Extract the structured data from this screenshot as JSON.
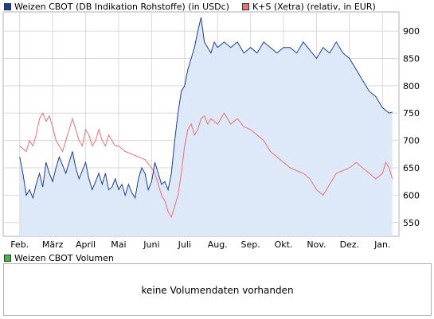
{
  "legend_top": [
    {
      "label": "Weizen CBOT (DB Indikation Rohstoffe) (in USDc)",
      "color": "#1f3f8a"
    },
    {
      "label": "K+S (Xetra) (relativ, in EUR)",
      "color": "#f07070"
    }
  ],
  "legend_volume": {
    "label": "Weizen CBOT Volumen",
    "color": "#4caf50"
  },
  "volume_message": "keine Volumendaten vorhanden",
  "chart_data": {
    "type": "line",
    "x": [
      "Feb.",
      "März",
      "April",
      "Mai",
      "Juni",
      "Juli",
      "Aug.",
      "Sep.",
      "Okt.",
      "Nov.",
      "Dez.",
      "Jan."
    ],
    "ylim": [
      525,
      935
    ],
    "yticks": [
      550,
      600,
      650,
      700,
      750,
      800,
      850,
      900
    ],
    "grid": true,
    "series": [
      {
        "name": "Weizen CBOT (DB Indikation Rohstoffe) (in USDc)",
        "color": "#1f3f8a",
        "fill": "#dde8f8",
        "x": [
          0,
          0.1,
          0.2,
          0.3,
          0.4,
          0.5,
          0.6,
          0.7,
          0.8,
          0.9,
          1.0,
          1.1,
          1.2,
          1.3,
          1.4,
          1.5,
          1.6,
          1.7,
          1.8,
          1.9,
          2.0,
          2.1,
          2.2,
          2.3,
          2.4,
          2.5,
          2.6,
          2.7,
          2.8,
          2.9,
          3.0,
          3.1,
          3.2,
          3.3,
          3.4,
          3.5,
          3.6,
          3.7,
          3.8,
          3.9,
          4.0,
          4.1,
          4.2,
          4.3,
          4.4,
          4.5,
          4.6,
          4.7,
          4.8,
          4.9,
          5.0,
          5.1,
          5.2,
          5.3,
          5.4,
          5.5,
          5.6,
          5.7,
          5.8,
          5.9,
          6.0,
          6.2,
          6.4,
          6.6,
          6.8,
          7.0,
          7.2,
          7.4,
          7.6,
          7.8,
          8.0,
          8.2,
          8.4,
          8.6,
          8.8,
          9.0,
          9.2,
          9.4,
          9.6,
          9.8,
          10.0,
          10.2,
          10.4,
          10.6,
          10.8,
          11.0,
          11.1,
          11.2,
          11.3
        ],
        "values": [
          670,
          640,
          600,
          610,
          595,
          620,
          640,
          615,
          660,
          640,
          625,
          650,
          670,
          655,
          640,
          660,
          680,
          650,
          630,
          645,
          660,
          630,
          610,
          625,
          640,
          620,
          640,
          610,
          615,
          630,
          610,
          620,
          600,
          620,
          605,
          595,
          630,
          650,
          640,
          610,
          625,
          660,
          640,
          620,
          625,
          610,
          640,
          700,
          750,
          790,
          800,
          830,
          850,
          870,
          900,
          925,
          880,
          870,
          860,
          880,
          870,
          880,
          870,
          880,
          860,
          870,
          860,
          880,
          870,
          860,
          870,
          870,
          860,
          880,
          865,
          850,
          870,
          860,
          880,
          860,
          850,
          830,
          810,
          790,
          780,
          760,
          755,
          750,
          752
        ]
      },
      {
        "name": "K+S (Xetra) (relativ, in EUR)",
        "color": "#f07070",
        "x": [
          0,
          0.1,
          0.2,
          0.3,
          0.4,
          0.5,
          0.6,
          0.7,
          0.8,
          0.9,
          1.0,
          1.1,
          1.2,
          1.3,
          1.4,
          1.5,
          1.6,
          1.7,
          1.8,
          1.9,
          2.0,
          2.1,
          2.2,
          2.3,
          2.4,
          2.5,
          2.6,
          2.7,
          2.8,
          2.9,
          3.0,
          3.2,
          3.4,
          3.6,
          3.8,
          4.0,
          4.1,
          4.2,
          4.3,
          4.4,
          4.5,
          4.6,
          4.7,
          4.8,
          4.9,
          5.0,
          5.1,
          5.2,
          5.3,
          5.4,
          5.5,
          5.6,
          5.7,
          5.8,
          6.0,
          6.2,
          6.4,
          6.6,
          6.8,
          7.0,
          7.2,
          7.4,
          7.6,
          7.8,
          8.0,
          8.2,
          8.4,
          8.6,
          8.8,
          9.0,
          9.2,
          9.4,
          9.6,
          9.8,
          10.0,
          10.2,
          10.4,
          10.6,
          10.8,
          11.0,
          11.1,
          11.2,
          11.3
        ],
        "values": [
          690,
          685,
          680,
          700,
          690,
          710,
          740,
          750,
          735,
          745,
          725,
          700,
          690,
          680,
          700,
          720,
          740,
          720,
          700,
          690,
          720,
          710,
          690,
          700,
          720,
          700,
          690,
          710,
          700,
          690,
          690,
          680,
          675,
          670,
          665,
          650,
          640,
          620,
          600,
          590,
          570,
          560,
          580,
          600,
          640,
          690,
          720,
          730,
          710,
          720,
          740,
          745,
          730,
          740,
          730,
          750,
          730,
          740,
          725,
          720,
          710,
          700,
          680,
          670,
          660,
          650,
          645,
          640,
          630,
          610,
          600,
          620,
          640,
          645,
          650,
          660,
          650,
          640,
          630,
          640,
          660,
          650,
          630
        ]
      }
    ]
  }
}
